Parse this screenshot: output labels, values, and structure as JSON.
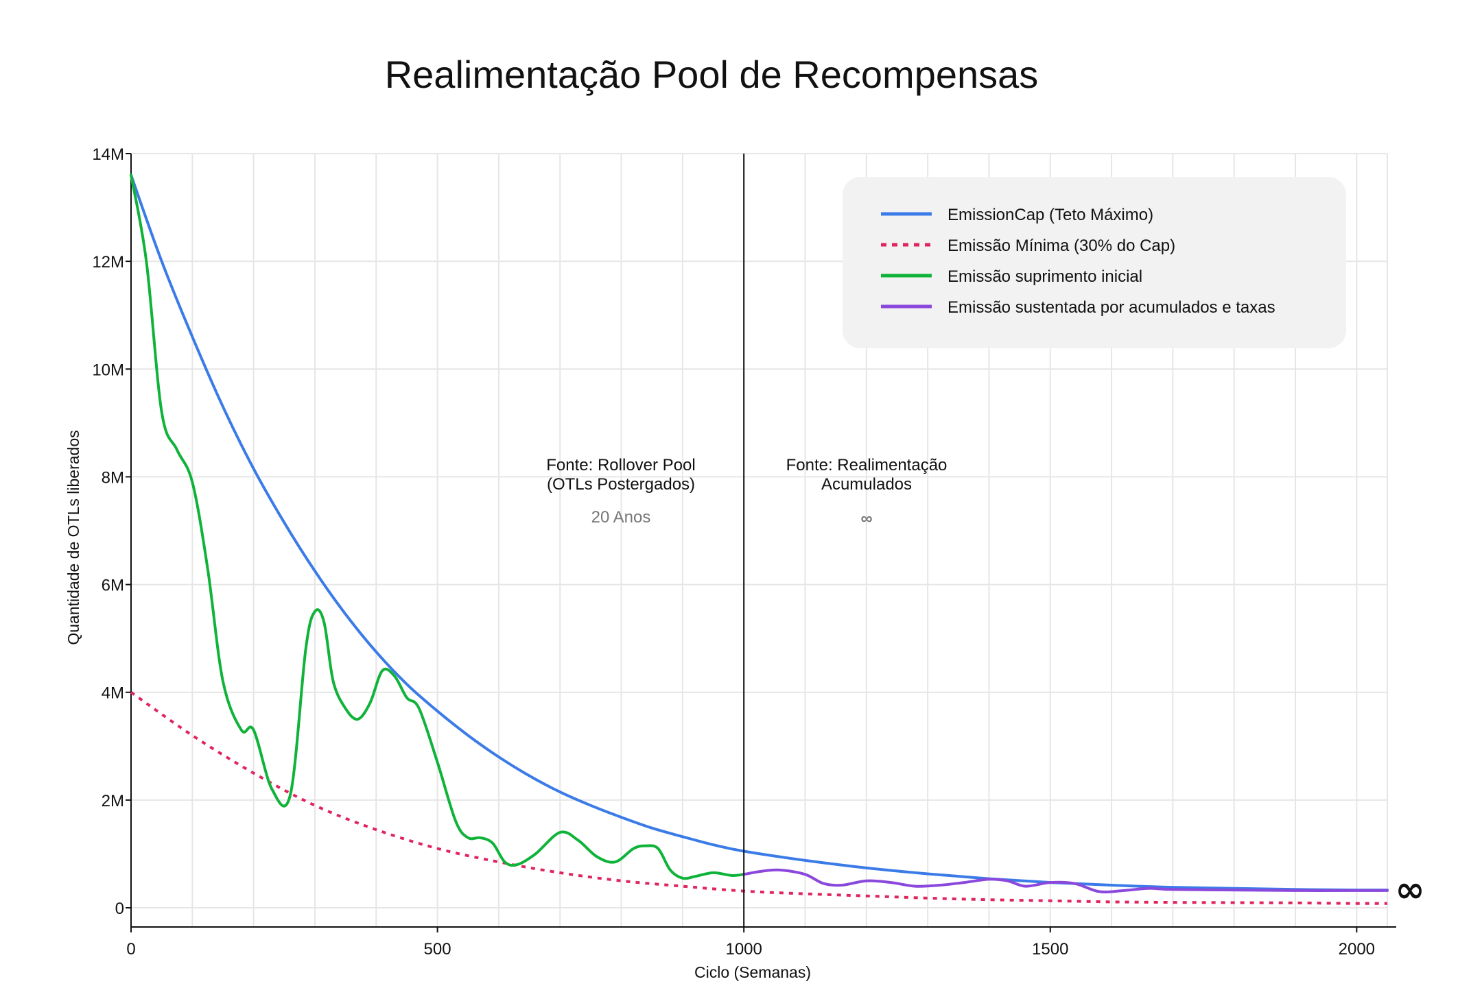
{
  "chart_data": {
    "type": "line",
    "title": "Realimentação Pool de Recompensas",
    "xlabel": "Ciclo (Semanas)",
    "ylabel": "Quantidade de OTLs liberados",
    "xlim": [
      0,
      2050
    ],
    "ylim": [
      0,
      14000000
    ],
    "x_ticks": [
      0,
      500,
      1000,
      1500,
      2000
    ],
    "x_tick_labels": [
      "0",
      "500",
      "1000",
      "1500",
      "2000"
    ],
    "y_ticks": [
      0,
      2000000,
      4000000,
      6000000,
      8000000,
      10000000,
      12000000,
      14000000
    ],
    "y_tick_labels": [
      "0",
      "2M",
      "4M",
      "6M",
      "8M",
      "10M",
      "12M",
      "14M"
    ],
    "grid": true,
    "legend_position": "top-right",
    "divider_x": 1000,
    "infinity_mark": "∞",
    "annotations": [
      {
        "x": 800,
        "y": 8000000,
        "lines": [
          "Fonte: Rollover Pool",
          "(OTLs Postergados)"
        ],
        "sub": "20 Anos"
      },
      {
        "x": 1200,
        "y": 8000000,
        "lines": [
          "Fonte: Realimentação",
          "Acumulados"
        ],
        "sub": "∞"
      }
    ],
    "series": [
      {
        "name": "EmissionCap (Teto Máximo)",
        "color": "#3b7be8",
        "style": "solid",
        "x": [
          0,
          50,
          100,
          150,
          200,
          250,
          300,
          350,
          400,
          450,
          500,
          550,
          600,
          650,
          700,
          750,
          800,
          850,
          900,
          950,
          1000,
          1100,
          1200,
          1300,
          1400,
          1500,
          1600,
          1700,
          1800,
          1900,
          2000,
          2050
        ],
        "y": [
          13600000,
          12000000,
          10600000,
          9300000,
          8150000,
          7150000,
          6250000,
          5450000,
          4750000,
          4150000,
          3650000,
          3200000,
          2800000,
          2450000,
          2150000,
          1900000,
          1680000,
          1480000,
          1320000,
          1170000,
          1050000,
          880000,
          740000,
          630000,
          540000,
          470000,
          420000,
          380000,
          360000,
          340000,
          330000,
          330000
        ]
      },
      {
        "name": "Emissão Mínima (30% do Cap)",
        "color": "#e0245e",
        "style": "dotted",
        "x": [
          0,
          100,
          200,
          300,
          400,
          500,
          600,
          700,
          800,
          900,
          1000,
          1100,
          1200,
          1300,
          1400,
          1500,
          1600,
          1700,
          1800,
          1900,
          2000,
          2050
        ],
        "y": [
          4000000,
          3200000,
          2500000,
          1900000,
          1450000,
          1100000,
          850000,
          650000,
          500000,
          400000,
          310000,
          260000,
          220000,
          180000,
          150000,
          130000,
          110000,
          100000,
          95000,
          90000,
          80000,
          80000
        ]
      },
      {
        "name": "Emissão suprimento inicial",
        "color": "#10b33a",
        "style": "solid",
        "x": [
          0,
          25,
          50,
          75,
          100,
          125,
          150,
          180,
          200,
          230,
          260,
          285,
          300,
          315,
          330,
          350,
          370,
          390,
          410,
          430,
          450,
          470,
          500,
          530,
          550,
          570,
          590,
          610,
          630,
          660,
          700,
          730,
          760,
          790,
          820,
          840,
          860,
          880,
          900,
          920,
          950,
          980,
          1000
        ],
        "y": [
          13600000,
          12000000,
          9200000,
          8500000,
          7900000,
          6300000,
          4200000,
          3300000,
          3300000,
          2200000,
          2100000,
          4800000,
          5500000,
          5300000,
          4200000,
          3700000,
          3500000,
          3800000,
          4400000,
          4300000,
          3900000,
          3700000,
          2700000,
          1600000,
          1300000,
          1300000,
          1200000,
          850000,
          800000,
          1000000,
          1400000,
          1250000,
          950000,
          850000,
          1100000,
          1150000,
          1100000,
          700000,
          550000,
          580000,
          650000,
          600000,
          620000
        ]
      },
      {
        "name": "Emissão sustentada por acumulados e taxas",
        "color": "#8a48dc",
        "style": "solid",
        "x": [
          1000,
          1030,
          1060,
          1100,
          1130,
          1160,
          1200,
          1240,
          1280,
          1320,
          1360,
          1400,
          1430,
          1460,
          1500,
          1540,
          1580,
          1620,
          1660,
          1700,
          1800,
          1900,
          2000,
          2050
        ],
        "y": [
          620000,
          680000,
          700000,
          620000,
          450000,
          420000,
          500000,
          470000,
          400000,
          420000,
          470000,
          530000,
          500000,
          400000,
          470000,
          450000,
          300000,
          320000,
          360000,
          340000,
          330000,
          320000,
          320000,
          320000
        ]
      }
    ]
  }
}
